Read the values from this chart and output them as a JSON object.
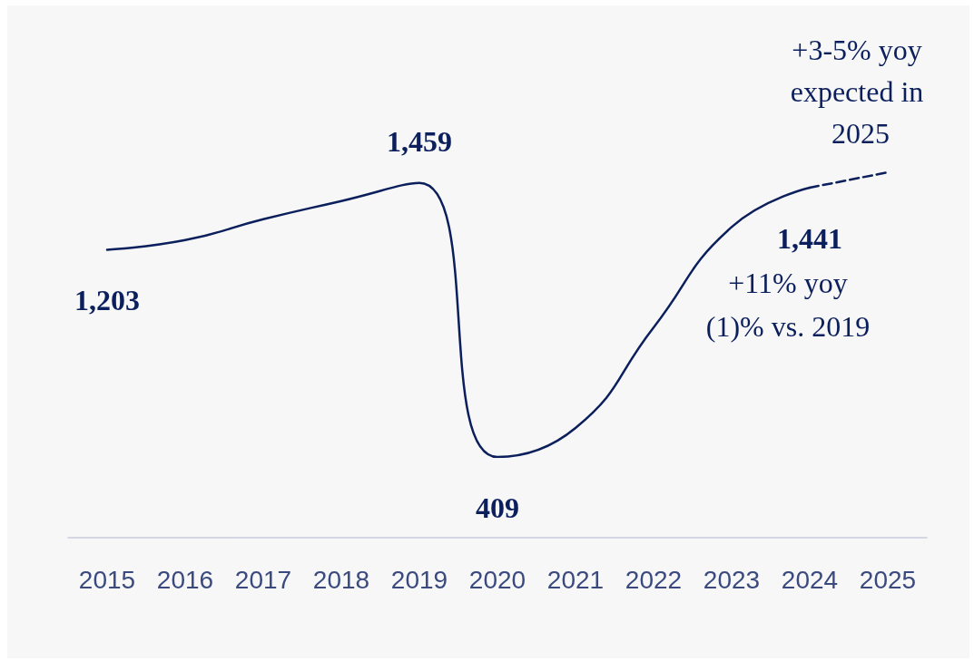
{
  "chart_data": {
    "type": "line",
    "categories": [
      "2015",
      "2016",
      "2017",
      "2018",
      "2019",
      "2020",
      "2021",
      "2022",
      "2023",
      "2024",
      "2025"
    ],
    "series": [
      {
        "color": "#0b1f5c",
        "values": [
          1203,
          1240,
          1320,
          1390,
          1459,
          409,
          520,
          905,
          1290,
          1441,
          null
        ],
        "value_labels": [
          "1,203",
          null,
          null,
          null,
          "1,459",
          "409",
          null,
          null,
          null,
          "1,441",
          null
        ]
      },
      {
        "color": "#0b1f5c",
        "line_style": "dashed",
        "values": [
          null,
          null,
          null,
          null,
          null,
          null,
          null,
          null,
          null,
          1441,
          1500
        ]
      }
    ],
    "line_style": "solid",
    "marker": "none",
    "grid": false,
    "tick_labels": "x",
    "annotations": [
      "+11% yoy",
      "(1)% vs. 2019",
      {
        "text": "+3-5% yoy expected in 2025",
        "x": "2025",
        "y": 1500
      }
    ]
  }
}
